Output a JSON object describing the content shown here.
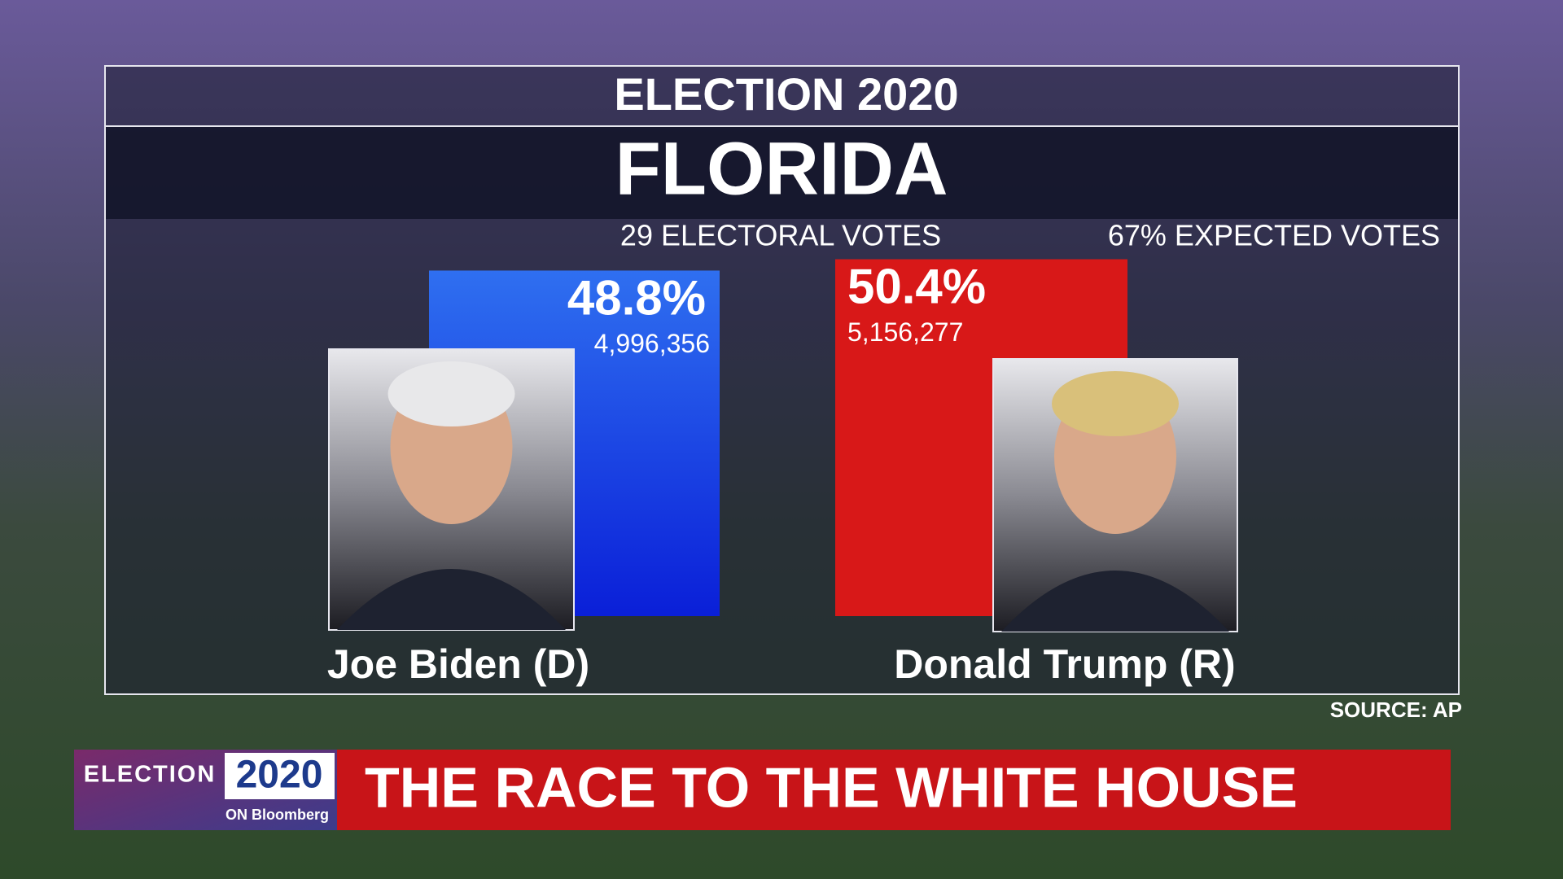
{
  "header": {
    "title": "ELECTION 2020",
    "state": "FLORIDA",
    "electoral_votes": "29 ELECTORAL VOTES",
    "expected_votes": "67% EXPECTED VOTES"
  },
  "chart_data": {
    "type": "bar",
    "categories": [
      "Joe Biden (D)",
      "Donald Trump (R)"
    ],
    "values": [
      48.8,
      50.4
    ],
    "value_labels": [
      "48.8%",
      "50.4%"
    ],
    "votes": {
      "values": [
        4996356,
        5156277
      ],
      "value_labels": [
        "4,996,356",
        "5,156,277"
      ]
    },
    "colors": [
      "#1f50e6",
      "#d81818"
    ]
  },
  "source": "SOURCE: AP",
  "footer": {
    "logo_election": "ELECTION",
    "logo_year": "2020",
    "logo_on": "ON Bloomberg",
    "headline": "THE RACE TO THE WHITE HOUSE"
  }
}
